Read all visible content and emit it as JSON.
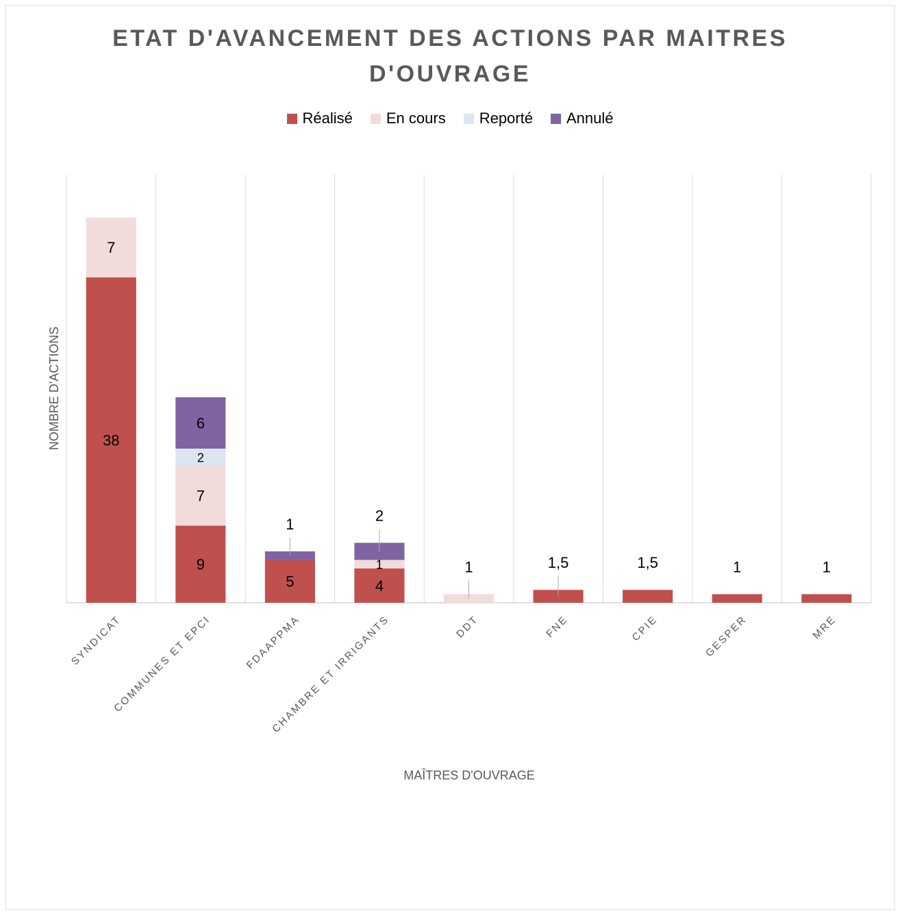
{
  "chart_data": {
    "type": "stacked_bar",
    "title": "ETAT D'AVANCEMENT DES ACTIONS PAR MAITRES D'OUVRAGE",
    "x_label": "MAÎTRES D'OUVRAGE",
    "y_label": "NOMBRE D'ACTIONS",
    "categories": [
      "SYNDICAT",
      "COMMUNES ET EPCI",
      "FDAAPPMA",
      "CHAMBRE ET IRRIGANTS",
      "DDT",
      "FNE",
      "CPIE",
      "GESPER",
      "MRE"
    ],
    "series": [
      {
        "name": "Réalisé",
        "color": "#c0504d",
        "values": [
          38,
          9,
          5,
          4,
          null,
          1.5,
          1.5,
          1,
          1
        ],
        "value_labels": [
          "38",
          "9",
          "5",
          "4",
          null,
          "1,5",
          "1,5",
          "1",
          "1"
        ]
      },
      {
        "name": "En cours",
        "color": "#f2dcdb",
        "values": [
          7,
          7,
          null,
          1,
          1,
          null,
          null,
          null,
          null
        ]
      },
      {
        "name": "Reporté",
        "color": "#dce6f2",
        "values": [
          null,
          2,
          null,
          null,
          null,
          null,
          null,
          null,
          null
        ]
      },
      {
        "name": "Annulé",
        "color": "#8064a2",
        "values": [
          null,
          6,
          1,
          2,
          null,
          null,
          null,
          null,
          null
        ]
      }
    ],
    "ylim": [
      0,
      50
    ],
    "legend": "top"
  }
}
